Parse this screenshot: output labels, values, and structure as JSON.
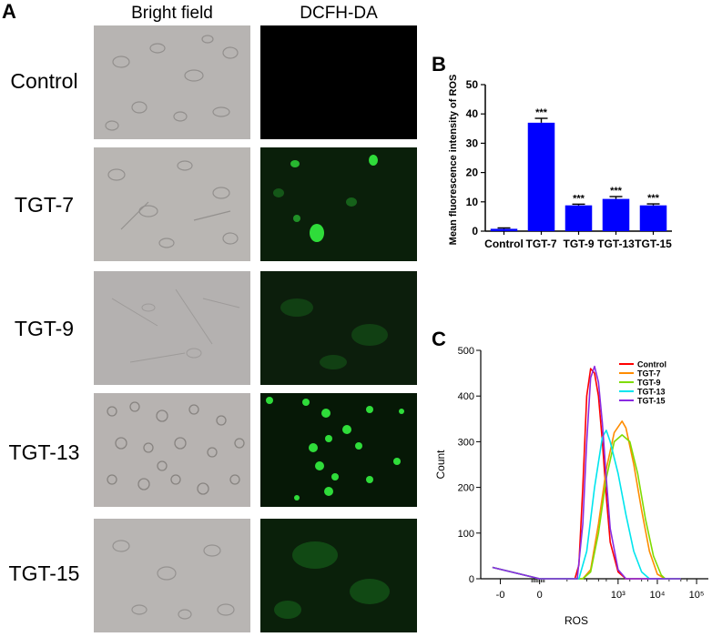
{
  "panels": {
    "a_letter": "A",
    "b_letter": "B",
    "c_letter": "C"
  },
  "micrograph": {
    "columns": [
      "Bright field",
      "DCFH-DA"
    ],
    "rows": [
      "Control",
      "TGT-7",
      "TGT-9",
      "TGT-13",
      "TGT-15"
    ],
    "colors": {
      "brightfield_bg": "#b5b2b0",
      "fluor_green": "#2fdc3a"
    }
  },
  "chart_data": [
    {
      "type": "bar",
      "panel": "B",
      "categories": [
        "Control",
        "TGT-7",
        "TGT-9",
        "TGT-13",
        "TGT-15"
      ],
      "values": [
        0.8,
        37.0,
        8.8,
        11.0,
        8.8
      ],
      "errors": [
        0.3,
        1.5,
        0.4,
        0.8,
        0.5
      ],
      "significance": [
        "",
        "***",
        "***",
        "***",
        "***"
      ],
      "ylabel": "Mean fluorescence intensity of ROS",
      "xlabel": "",
      "ylim": [
        0,
        50
      ],
      "yticks": [
        0,
        10,
        20,
        30,
        40,
        50
      ],
      "bar_color": "#0000ff",
      "grid": false
    },
    {
      "type": "line",
      "panel": "C",
      "xlabel": "ROS",
      "ylabel": "Count",
      "ylim": [
        0,
        500
      ],
      "yticks": [
        0,
        100,
        200,
        300,
        400,
        500
      ],
      "xtick_labels": [
        "-0",
        "0",
        "10³",
        "10⁴",
        "10⁵"
      ],
      "legend_position": "top-right",
      "series": [
        {
          "name": "Control",
          "color": "#ff0000",
          "points": [
            [
              -0.6,
              25
            ],
            [
              0,
              0
            ],
            [
              0.45,
              0
            ],
            [
              0.5,
              30
            ],
            [
              0.55,
              200
            ],
            [
              0.6,
              400
            ],
            [
              0.65,
              460
            ],
            [
              0.7,
              450
            ],
            [
              0.75,
              400
            ],
            [
              0.8,
              300
            ],
            [
              0.85,
              180
            ],
            [
              0.9,
              80
            ],
            [
              1.0,
              15
            ],
            [
              1.1,
              0
            ],
            [
              1.8,
              0
            ]
          ]
        },
        {
          "name": "TGT-7",
          "color": "#ff8c00",
          "points": [
            [
              -0.6,
              25
            ],
            [
              0,
              0
            ],
            [
              0.55,
              0
            ],
            [
              0.65,
              20
            ],
            [
              0.75,
              120
            ],
            [
              0.85,
              240
            ],
            [
              0.95,
              320
            ],
            [
              1.05,
              345
            ],
            [
              1.1,
              330
            ],
            [
              1.2,
              250
            ],
            [
              1.3,
              150
            ],
            [
              1.4,
              60
            ],
            [
              1.5,
              10
            ],
            [
              1.6,
              0
            ],
            [
              1.8,
              0
            ]
          ]
        },
        {
          "name": "TGT-9",
          "color": "#7fdc00",
          "points": [
            [
              -0.6,
              25
            ],
            [
              0,
              0
            ],
            [
              0.55,
              0
            ],
            [
              0.65,
              15
            ],
            [
              0.75,
              100
            ],
            [
              0.85,
              220
            ],
            [
              0.95,
              300
            ],
            [
              1.05,
              315
            ],
            [
              1.15,
              300
            ],
            [
              1.25,
              230
            ],
            [
              1.35,
              130
            ],
            [
              1.45,
              50
            ],
            [
              1.55,
              8
            ],
            [
              1.6,
              0
            ],
            [
              1.8,
              0
            ]
          ]
        },
        {
          "name": "TGT-13",
          "color": "#00e5ee",
          "points": [
            [
              -0.6,
              25
            ],
            [
              0,
              0
            ],
            [
              0.5,
              0
            ],
            [
              0.6,
              60
            ],
            [
              0.7,
              200
            ],
            [
              0.8,
              310
            ],
            [
              0.85,
              325
            ],
            [
              0.9,
              300
            ],
            [
              1.0,
              230
            ],
            [
              1.1,
              140
            ],
            [
              1.2,
              60
            ],
            [
              1.3,
              15
            ],
            [
              1.4,
              0
            ],
            [
              1.8,
              0
            ]
          ]
        },
        {
          "name": "TGT-15",
          "color": "#8a2be2",
          "points": [
            [
              -0.6,
              25
            ],
            [
              0,
              0
            ],
            [
              0.48,
              0
            ],
            [
              0.55,
              120
            ],
            [
              0.6,
              300
            ],
            [
              0.65,
              440
            ],
            [
              0.7,
              465
            ],
            [
              0.75,
              430
            ],
            [
              0.8,
              340
            ],
            [
              0.85,
              220
            ],
            [
              0.9,
              110
            ],
            [
              1.0,
              20
            ],
            [
              1.1,
              0
            ],
            [
              1.8,
              0
            ]
          ]
        }
      ]
    }
  ]
}
